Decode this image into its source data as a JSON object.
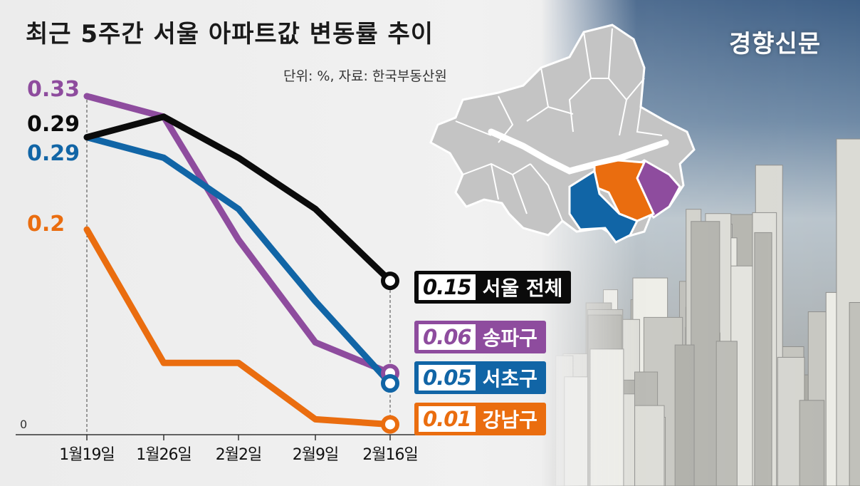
{
  "title": "최근 5주간 서울 아파트값 변동률 추이",
  "source": "단위: %, 자료: 한국부동산원",
  "logo": "경향신문",
  "zero_label": "0",
  "colors": {
    "seoul": "#0b0b0b",
    "songpa": "#8e4c9e",
    "seocho": "#1165a6",
    "gangnam": "#ea6d0f",
    "map_gray": "#c4c4c4"
  },
  "chart_data": {
    "type": "line",
    "title": "최근 5주간 서울 아파트값 변동률 추이",
    "xlabel": "",
    "ylabel": "",
    "unit": "%",
    "categories": [
      "1월19일",
      "1월26일",
      "2월2일",
      "2월9일",
      "2월16일"
    ],
    "ylim": [
      0,
      0.33
    ],
    "grid": false,
    "series": [
      {
        "name": "서울 전체",
        "key": "seoul",
        "values": [
          0.29,
          0.31,
          0.27,
          0.22,
          0.15
        ],
        "start_label": "0.29",
        "end_label": "0.15"
      },
      {
        "name": "송파구",
        "key": "songpa",
        "values": [
          0.33,
          0.31,
          0.19,
          0.09,
          0.06
        ],
        "start_label": "0.33",
        "end_label": "0.06"
      },
      {
        "name": "서초구",
        "key": "seocho",
        "values": [
          0.29,
          0.27,
          0.22,
          0.13,
          0.05
        ],
        "start_label": "0.29",
        "end_label": "0.05"
      },
      {
        "name": "강남구",
        "key": "gangnam",
        "values": [
          0.2,
          0.07,
          0.07,
          0.015,
          0.01
        ],
        "start_label": "0.2",
        "end_label": "0.01"
      }
    ]
  }
}
